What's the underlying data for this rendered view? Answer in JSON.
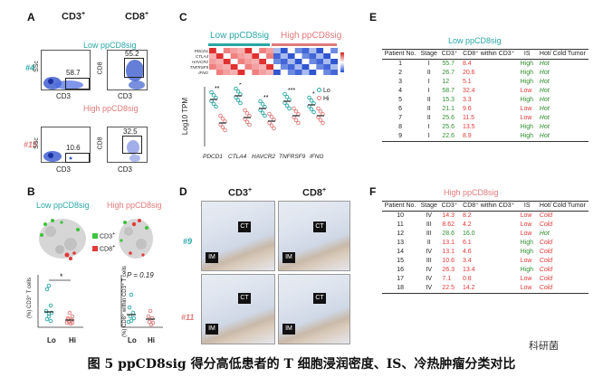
{
  "panelA": {
    "label": "A",
    "col1_header": "CD3",
    "col1_sup": "+",
    "col2_header": "CD8",
    "col2_sup": "+",
    "low_title": "Low ppCD8sig",
    "high_title": "High ppCD8sig",
    "sample_low": "#4",
    "sample_high": "#15",
    "low_cd3_pct": "58.7",
    "low_cd8_pct": "55.2",
    "high_cd3_pct": "10.6",
    "high_cd8_pct": "32.5",
    "x_label_cd3": "CD3",
    "x_label_cd8": "CD3",
    "y_label_ssc": "SSc",
    "y_label_cd8": "CD8"
  },
  "panelB": {
    "label": "B",
    "low_title": "Low ppCD8sig",
    "high_title": "High ppCD8sig",
    "legend_cd3": "CD3",
    "legend_cd8": "CD8",
    "legend_sup": "+",
    "plot1_ylabel": "(%) CD3⁺ T cells",
    "plot2_ylabel": "(%) CD8⁺ within CD3⁺ T cells",
    "plot1_sig": "*",
    "plot2_pvalue": "P = 0.19",
    "x_lo": "Lo",
    "x_hi": "Hi"
  },
  "panelC": {
    "label": "C",
    "low_title": "Low ppCD8sig",
    "high_title": "High ppCD8sig",
    "heat_genes": [
      "PDCD1",
      "CTLA4",
      "HAVCR2",
      "TNFRSF9",
      "IFNG"
    ],
    "y_label": "Log10 TPM",
    "legend_lo": "Lo",
    "legend_hi": "Hi",
    "sig": [
      "**",
      "*",
      "**",
      "***",
      "*"
    ],
    "genes": [
      "PDCD1",
      "CTLA4",
      "HAVCR2",
      "TNFRSF9",
      "IFNG"
    ],
    "colors": {
      "lo": "#2aa6a6",
      "hi": "#e07a7a"
    }
  },
  "panelD": {
    "label": "D",
    "col1": "CD3",
    "col2": "CD8",
    "sup": "+",
    "row1": "#9",
    "row2": "#11",
    "ct": "CT",
    "im": "IM"
  },
  "panelE": {
    "label": "E",
    "title": "Low ppCD8sig",
    "headers": [
      "Patient No.",
      "Stage",
      "CD3⁺",
      "CD8⁺ within CD3⁺",
      "IS",
      "Hot/ Cold Tumor"
    ],
    "rows": [
      [
        "1",
        "I",
        "55.7",
        "8.4",
        "High",
        "Hot"
      ],
      [
        "2",
        "II",
        "26.7",
        "20.6",
        "High",
        "Hot"
      ],
      [
        "3",
        "I",
        "12",
        "5.1",
        "High",
        "Hot"
      ],
      [
        "4",
        "I",
        "58.7",
        "32.4",
        "Low",
        "Hot"
      ],
      [
        "5",
        "II",
        "15.3",
        "3.3",
        "High",
        "Hot"
      ],
      [
        "6",
        "II",
        "21.1",
        "9.6",
        "Low",
        "Hot"
      ],
      [
        "7",
        "II",
        "25.6",
        "11.5",
        "Low",
        "Hot"
      ],
      [
        "8",
        "I",
        "25.6",
        "13.5",
        "High",
        "Hot"
      ],
      [
        "9",
        "I",
        "22.6",
        "8.9",
        "High",
        "Hot"
      ]
    ]
  },
  "panelF": {
    "label": "F",
    "title": "High ppCD8sig",
    "headers": [
      "Patient No.",
      "Stage",
      "CD3⁺",
      "CD8⁺ within CD3⁺",
      "IS",
      "Hot/ Cold Tumor"
    ],
    "rows": [
      [
        "10",
        "IV",
        "14.3",
        "8.2",
        "Low",
        "Cold"
      ],
      [
        "11",
        "III",
        "8.62",
        "4.2",
        "Low",
        "Cold"
      ],
      [
        "12",
        "III",
        "28.6",
        "16.0",
        "Low",
        "Hot"
      ],
      [
        "13",
        "II",
        "13.1",
        "6.1",
        "High",
        "Cold"
      ],
      [
        "14",
        "IV",
        "13.1",
        "4.6",
        "High",
        "Cold"
      ],
      [
        "15",
        "III",
        "10.6",
        "3.4",
        "Low",
        "Cold"
      ],
      [
        "16",
        "IV",
        "26.3",
        "13.4",
        "High",
        "Cold"
      ],
      [
        "17",
        "IV",
        "7.1",
        "0.8",
        "Low",
        "Cold"
      ],
      [
        "18",
        "IV",
        "22.5",
        "14.2",
        "Low",
        "Cold"
      ]
    ]
  },
  "caption": "图 5   ppCD8sig 得分高低患者的 T 细胞浸润密度、IS、冷热肿瘤分类对比",
  "watermark": "科研菌"
}
